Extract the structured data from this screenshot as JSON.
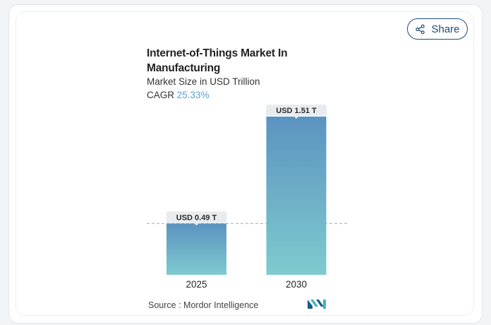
{
  "share": {
    "label": "Share"
  },
  "header": {
    "title": "Internet-of-Things Market In Manufacturing",
    "subtitle": "Market Size in USD Trillion",
    "cagr_label": "CAGR",
    "cagr_value": "25.33%"
  },
  "footer": {
    "source_label": "Source :",
    "source_name": "Mordor Intelligence",
    "logo_icon": "mordor-intelligence-logo-icon"
  },
  "colors": {
    "bar_top": "#5b93c0",
    "bar_bottom": "#7fcbcf",
    "accent": "#5a9fd4",
    "share_border": "#1e4c7a",
    "label_bg": "#e8ecef"
  },
  "chart_data": {
    "type": "bar",
    "title": "Internet-of-Things Market In Manufacturing",
    "ylabel": "Market Size in USD Trillion",
    "categories": [
      "2025",
      "2030"
    ],
    "values": [
      0.49,
      1.51
    ],
    "data_labels": [
      "USD 0.49 T",
      "USD 1.51 T"
    ],
    "ylim": [
      0,
      1.51
    ],
    "reference_line": 0.49,
    "grid": false,
    "legend": "none"
  }
}
